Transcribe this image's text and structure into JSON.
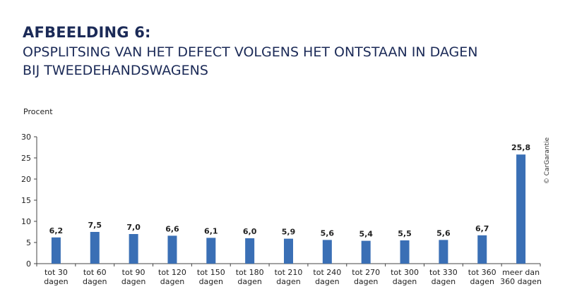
{
  "title": {
    "label": "AFBEELDING 6:",
    "line1": "OPSPLITSING VAN HET DEFECT VOLGENS HET ONTSTAAN IN DAGEN",
    "line2": "BIJ TWEEDEHANDSWAGENS"
  },
  "copyright": "© CarGarantie",
  "colors": {
    "bar": "#3a6fb5",
    "title": "#1b2a57",
    "axis": "#444444",
    "text": "#222222"
  },
  "chart_data": {
    "type": "bar",
    "ylabel": "Procent",
    "ylim": [
      0,
      30
    ],
    "yticks": [
      0,
      5,
      10,
      15,
      20,
      25,
      30
    ],
    "grid": false,
    "categories": [
      [
        "tot 30",
        "dagen"
      ],
      [
        "tot 60",
        "dagen"
      ],
      [
        "tot 90",
        "dagen"
      ],
      [
        "tot 120",
        "dagen"
      ],
      [
        "tot 150",
        "dagen"
      ],
      [
        "tot 180",
        "dagen"
      ],
      [
        "tot 210",
        "dagen"
      ],
      [
        "tot 240",
        "dagen"
      ],
      [
        "tot 270",
        "dagen"
      ],
      [
        "tot 300",
        "dagen"
      ],
      [
        "tot 330",
        "dagen"
      ],
      [
        "tot 360",
        "dagen"
      ],
      [
        "meer dan",
        "360 dagen"
      ]
    ],
    "values": [
      6.2,
      7.5,
      7.0,
      6.6,
      6.1,
      6.0,
      5.9,
      5.6,
      5.4,
      5.5,
      5.6,
      6.7,
      25.8
    ],
    "data_labels": [
      "6,2",
      "7,5",
      "7,0",
      "6,6",
      "6,1",
      "6,0",
      "5,9",
      "5,6",
      "5,4",
      "5,5",
      "5,6",
      "6,7",
      "25,8"
    ]
  }
}
